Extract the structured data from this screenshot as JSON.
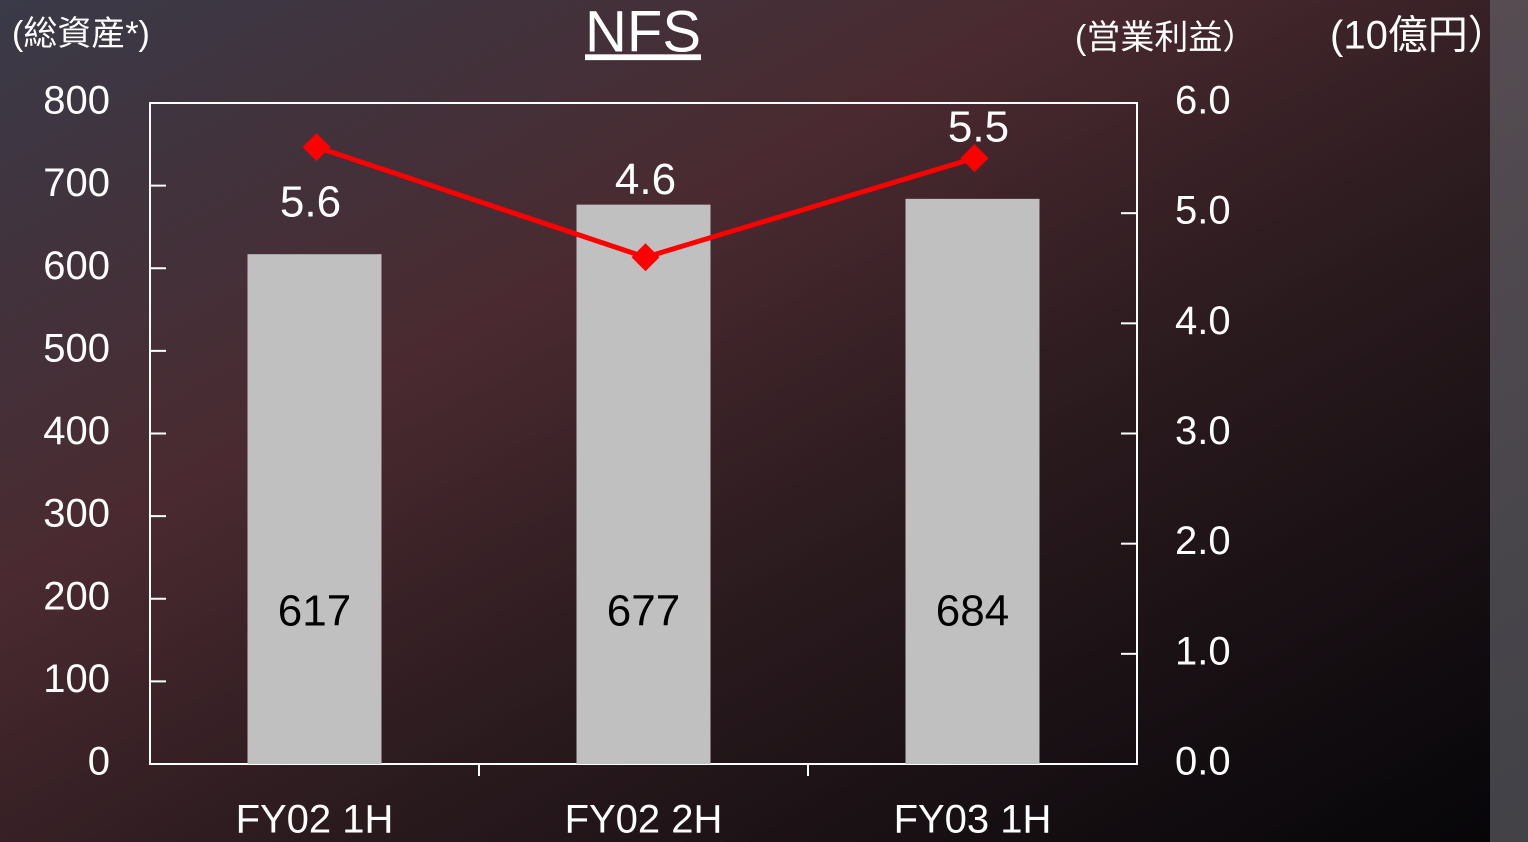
{
  "chart_data": {
    "type": "bar_line",
    "title": "NFS",
    "y_label": "(総資産*)",
    "y2_label": "(営業利益）",
    "unit_label": "(10億円）",
    "categories": [
      "FY02 1H",
      "FY02 2H",
      "FY03 1H"
    ],
    "series": [
      {
        "name": "総資産",
        "type": "bar",
        "color": "#c0c0c0",
        "values": [
          617,
          677,
          684
        ]
      },
      {
        "name": "営業利益",
        "type": "line",
        "axis": "y2",
        "color": "#ff0000",
        "values": [
          5.6,
          4.6,
          5.5
        ]
      }
    ],
    "ylim": [
      0,
      800
    ],
    "yticks": [
      0,
      100,
      200,
      300,
      400,
      500,
      600,
      700,
      800
    ],
    "y2lim": [
      0,
      6
    ],
    "y2ticks": [
      {
        "value": 0,
        "label": "0.0"
      },
      {
        "value": 1,
        "label": "1.0"
      },
      {
        "value": 2,
        "label": "2.0"
      },
      {
        "value": 3,
        "label": "3.0"
      },
      {
        "value": 4,
        "label": "4.0"
      },
      {
        "value": 5,
        "label": "5.0"
      },
      {
        "value": 6,
        "label": "6.0"
      }
    ]
  }
}
